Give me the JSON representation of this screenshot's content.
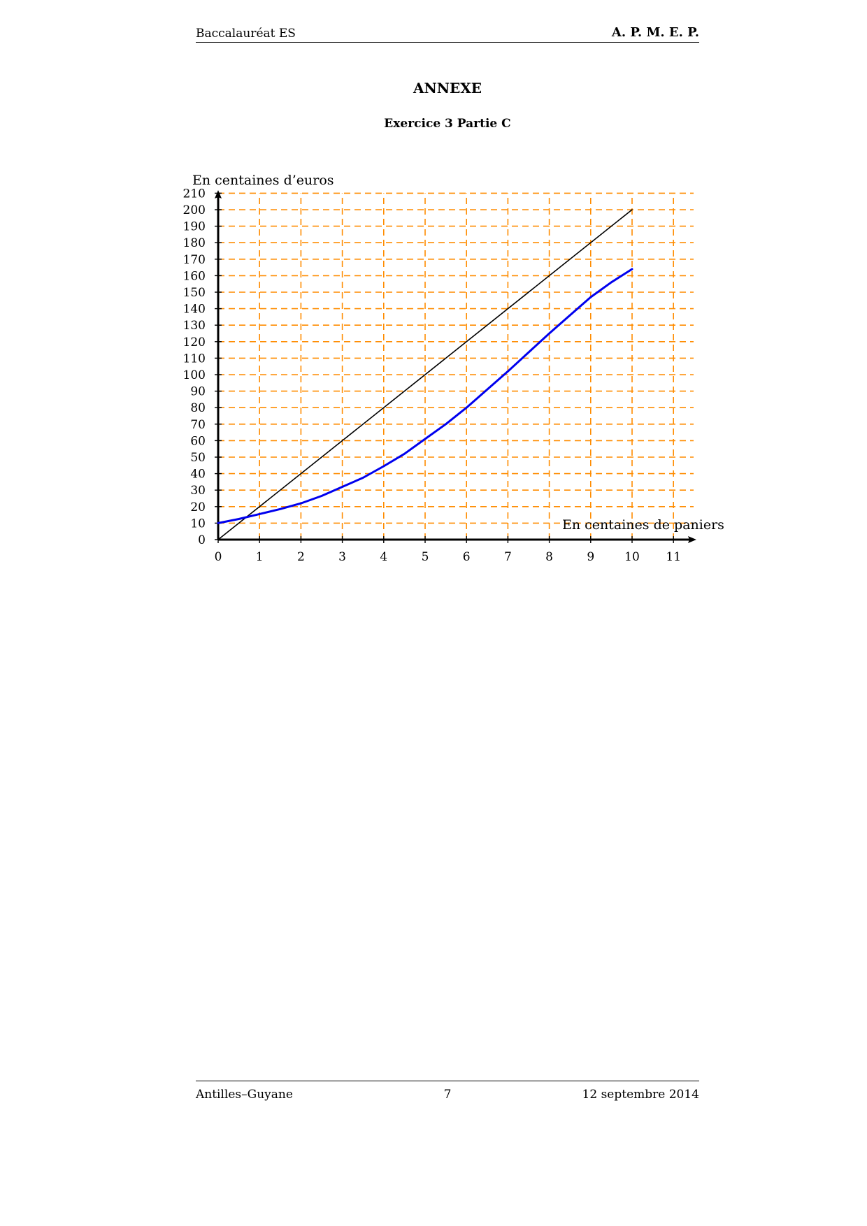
{
  "header": {
    "left": "Baccalauréat ES",
    "right": "A. P. M. E. P."
  },
  "title": "ANNEXE",
  "subtitle": "Exercice 3 Partie C",
  "footer": {
    "left": "Antilles–Guyane",
    "center": "7",
    "right": "12 septembre 2014"
  },
  "chart_data": {
    "type": "line",
    "ylabel": "En centaines d’euros",
    "xlabel": "En centaines de paniers",
    "xlim": [
      0,
      11
    ],
    "ylim": [
      0,
      210
    ],
    "x_ticks": [
      0,
      1,
      2,
      3,
      4,
      5,
      6,
      7,
      8,
      9,
      10,
      11
    ],
    "y_ticks": [
      0,
      10,
      20,
      30,
      40,
      50,
      60,
      70,
      80,
      90,
      100,
      110,
      120,
      130,
      140,
      150,
      160,
      170,
      180,
      190,
      200,
      210
    ],
    "grid": true,
    "grid_color": "#ff8c00",
    "series": [
      {
        "color": "#000000",
        "x": [
          0,
          10
        ],
        "y": [
          0,
          200
        ]
      },
      {
        "color": "#0000ee",
        "x": [
          0,
          0.5,
          1,
          1.5,
          2,
          2.5,
          3,
          3.5,
          4,
          4.5,
          5,
          5.5,
          6,
          6.5,
          7,
          7.5,
          8,
          8.5,
          9,
          9.5,
          10
        ],
        "y": [
          10,
          12.5,
          15.5,
          18.5,
          22,
          26.5,
          32,
          37.5,
          44.5,
          52,
          61,
          70,
          80,
          91,
          102,
          113.5,
          125,
          136,
          147,
          156,
          164
        ]
      }
    ]
  }
}
